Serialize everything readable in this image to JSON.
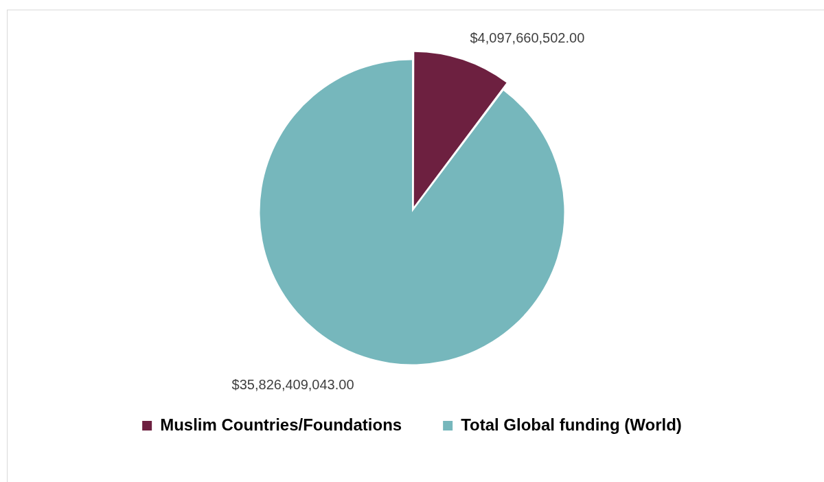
{
  "chart_data": {
    "type": "pie",
    "categories": [
      "Muslim Countries/Foundations",
      "Total Global funding (World)"
    ],
    "values": [
      4097660502,
      35826409043
    ],
    "colors": [
      "#6d2040",
      "#76b7bc"
    ],
    "value_labels": [
      "$4,097,660,502.00",
      "$35,826,409,043.00"
    ],
    "legend": "bottom"
  }
}
